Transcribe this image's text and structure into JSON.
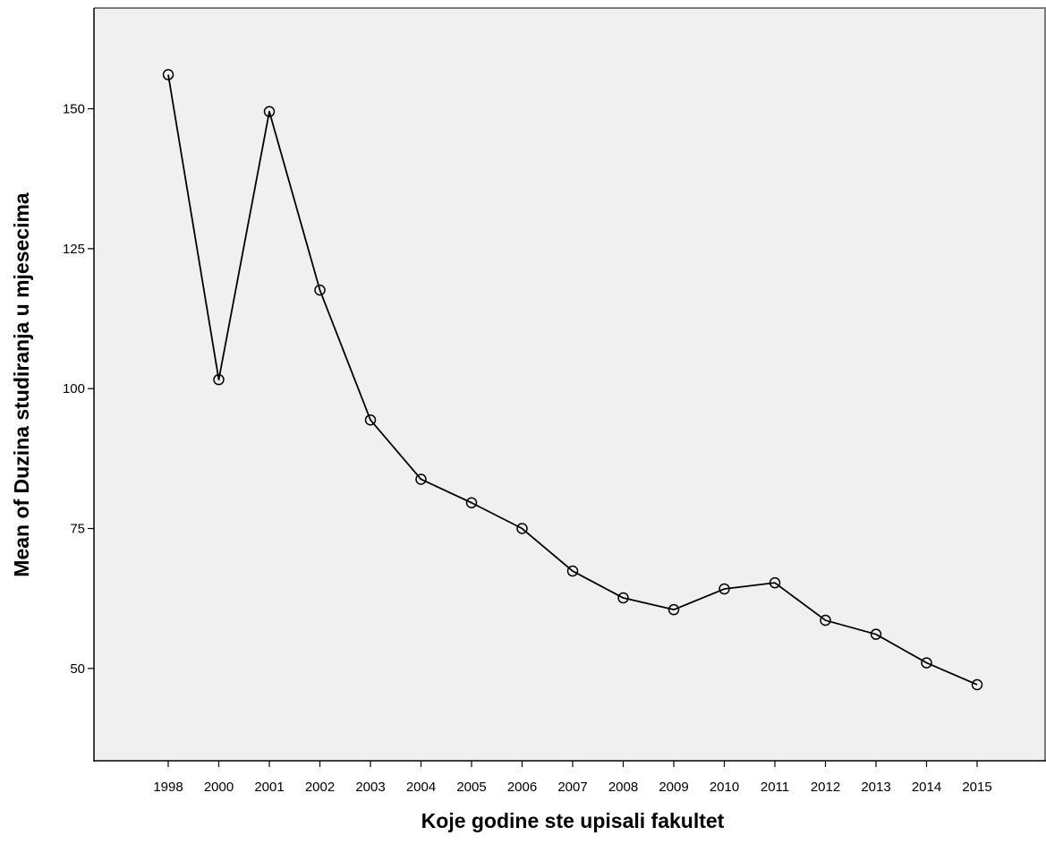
{
  "chart_data": {
    "type": "line",
    "title": "",
    "xlabel": "Koje godine ste upisali fakultet",
    "ylabel": "Mean of Duzina studiranja u mjesecima",
    "categories": [
      "1998",
      "2000",
      "2001",
      "2002",
      "2003",
      "2004",
      "2005",
      "2006",
      "2007",
      "2008",
      "2009",
      "2010",
      "2011",
      "2012",
      "2013",
      "2014",
      "2015"
    ],
    "series": [
      {
        "name": "",
        "values": [
          156.1,
          101.6,
          149.5,
          117.6,
          94.4,
          83.8,
          79.6,
          75.0,
          67.4,
          62.6,
          60.5,
          64.2,
          65.3,
          58.6,
          56.1,
          51.0,
          47.1
        ],
        "marker": "open-circle",
        "color": "#000000"
      }
    ],
    "ylim": [
      33.5,
      168
    ],
    "yticks": [
      50,
      75,
      100,
      125,
      150
    ],
    "grid": false,
    "legend": "none",
    "colors": {
      "plot_background": "#f0f0f0",
      "frame": "#000000",
      "line": "#000000"
    }
  }
}
